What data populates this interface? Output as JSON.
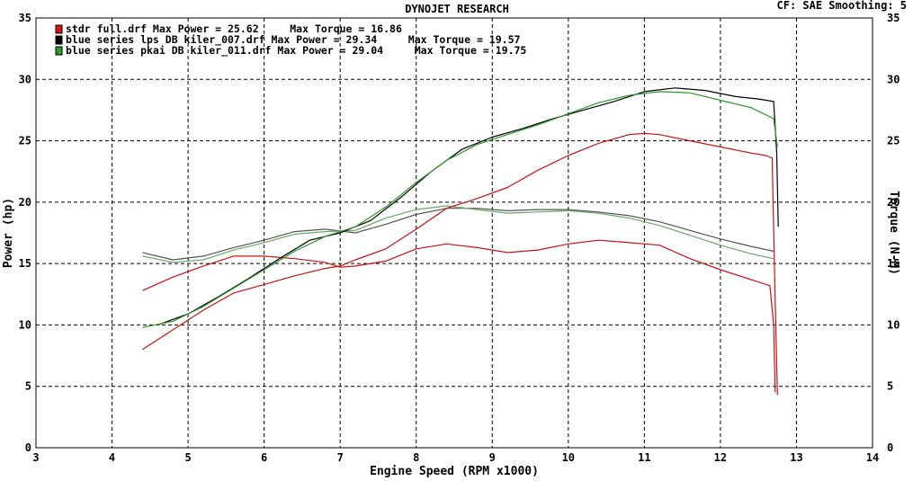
{
  "header": {
    "title": "DYNOJET RESEARCH",
    "right": "CF: SAE  Smoothing: 5"
  },
  "chart_data": {
    "type": "line",
    "title": "DYNOJET RESEARCH",
    "xlabel": "Engine Speed (RPM x1000)",
    "ylabel_left": "Power (hp)",
    "ylabel_right": "Torque (N-M)",
    "xlim": [
      3,
      14
    ],
    "ylim": [
      0,
      35
    ],
    "x_ticks": [
      3,
      4,
      5,
      6,
      7,
      8,
      9,
      10,
      11,
      12,
      13,
      14
    ],
    "y_ticks": [
      0,
      5,
      10,
      15,
      20,
      25,
      30,
      35
    ],
    "grid": true,
    "legend_position": "top-left",
    "legend": [
      {
        "swatch": "#e01010",
        "text": "stdr full.drf Max Power = 25.62     Max Torque = 16.86"
      },
      {
        "swatch": "#000000",
        "text": "blue series lps DB kiler_007.drf Max Power = 29.34     Max Torque = 19.57"
      },
      {
        "swatch": "#2a9a2a",
        "text": "blue series pkai DB kiler_011.drf Max Power = 29.04     Max Torque = 19.75"
      }
    ],
    "series": [
      {
        "name": "stdr full.drf",
        "measure": "power",
        "color": "#cc1111",
        "x": [
          4.4,
          4.8,
          5.2,
          5.6,
          6.0,
          6.4,
          6.8,
          7.0,
          7.2,
          7.6,
          8.0,
          8.4,
          8.8,
          9.2,
          9.6,
          10.0,
          10.4,
          10.8,
          11.0,
          11.2,
          11.6,
          12.0,
          12.4,
          12.6,
          12.68,
          12.72,
          12.75
        ],
        "y": [
          8.0,
          9.6,
          11.2,
          12.6,
          13.3,
          14.0,
          14.6,
          14.8,
          15.3,
          16.2,
          17.8,
          19.5,
          20.3,
          21.2,
          22.6,
          23.8,
          24.8,
          25.5,
          25.6,
          25.5,
          25.0,
          24.5,
          24.0,
          23.8,
          23.6,
          12.0,
          4.3
        ]
      },
      {
        "name": "blue series lps DB kiler_007.drf",
        "measure": "power",
        "color": "#000000",
        "x": [
          4.6,
          5.0,
          5.4,
          5.8,
          6.2,
          6.6,
          7.0,
          7.4,
          7.8,
          8.2,
          8.6,
          9.0,
          9.4,
          9.8,
          10.2,
          10.6,
          11.0,
          11.4,
          11.8,
          12.2,
          12.5,
          12.7,
          12.74,
          12.76
        ],
        "y": [
          10.0,
          10.9,
          12.3,
          13.8,
          15.4,
          16.9,
          17.5,
          18.5,
          20.4,
          22.5,
          24.3,
          25.3,
          26.0,
          26.8,
          27.5,
          28.2,
          29.0,
          29.3,
          29.1,
          28.6,
          28.4,
          28.2,
          24.0,
          18.0
        ]
      },
      {
        "name": "blue series pkai DB kiler_011.drf",
        "measure": "power",
        "color": "#2a9a2a",
        "x": [
          4.4,
          4.8,
          5.2,
          5.6,
          6.0,
          6.4,
          6.8,
          7.2,
          7.6,
          8.0,
          8.4,
          8.8,
          9.2,
          9.6,
          10.0,
          10.4,
          10.8,
          11.2,
          11.6,
          12.0,
          12.4,
          12.7,
          12.75
        ],
        "y": [
          9.8,
          10.3,
          11.5,
          13.0,
          14.5,
          16.0,
          17.2,
          18.0,
          19.6,
          21.6,
          23.4,
          24.7,
          25.5,
          26.3,
          27.2,
          28.1,
          28.7,
          29.0,
          28.9,
          28.3,
          27.7,
          26.8,
          24.5
        ]
      },
      {
        "name": "stdr full.drf",
        "measure": "torque",
        "color": "#cc1111",
        "x": [
          4.4,
          4.8,
          5.2,
          5.6,
          6.0,
          6.4,
          6.8,
          7.0,
          7.2,
          7.6,
          8.0,
          8.4,
          8.8,
          9.2,
          9.6,
          10.0,
          10.4,
          10.8,
          11.2,
          11.6,
          12.0,
          12.4,
          12.65,
          12.7,
          12.72
        ],
        "y": [
          12.8,
          13.9,
          14.8,
          15.6,
          15.6,
          15.4,
          15.1,
          14.7,
          14.8,
          15.2,
          16.2,
          16.6,
          16.3,
          15.9,
          16.1,
          16.6,
          16.9,
          16.7,
          16.5,
          15.4,
          14.5,
          13.7,
          13.2,
          10.0,
          4.5
        ]
      },
      {
        "name": "blue series lps DB kiler_007.drf",
        "measure": "torque",
        "color": "#555555",
        "x": [
          4.4,
          4.8,
          5.2,
          5.6,
          6.0,
          6.4,
          6.8,
          7.2,
          7.6,
          8.0,
          8.4,
          8.8,
          9.2,
          9.6,
          10.0,
          10.4,
          10.8,
          11.2,
          11.6,
          12.0,
          12.4,
          12.7
        ],
        "y": [
          15.9,
          15.3,
          15.6,
          16.3,
          16.9,
          17.6,
          17.8,
          17.5,
          18.2,
          19.0,
          19.5,
          19.5,
          19.3,
          19.4,
          19.4,
          19.2,
          18.9,
          18.4,
          17.7,
          17.0,
          16.4,
          16.0
        ]
      },
      {
        "name": "blue series pkai DB kiler_011.drf",
        "measure": "torque",
        "color": "#66aa66",
        "x": [
          4.4,
          4.8,
          5.2,
          5.6,
          6.0,
          6.4,
          6.8,
          7.2,
          7.6,
          8.0,
          8.4,
          8.8,
          9.2,
          9.6,
          10.0,
          10.4,
          10.8,
          11.2,
          11.6,
          12.0,
          12.4,
          12.7
        ],
        "y": [
          15.6,
          15.1,
          15.3,
          16.1,
          16.7,
          17.4,
          17.6,
          17.7,
          18.7,
          19.4,
          19.7,
          19.4,
          19.1,
          19.2,
          19.3,
          19.1,
          18.7,
          18.1,
          17.3,
          16.5,
          15.8,
          15.4
        ]
      }
    ]
  }
}
